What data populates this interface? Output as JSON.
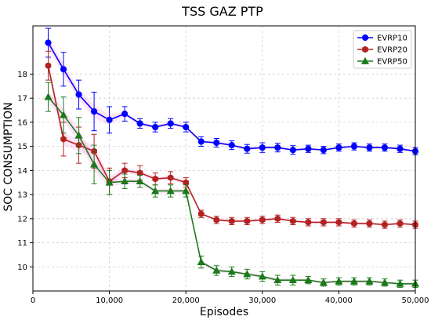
{
  "chart_data": {
    "type": "line",
    "title": "TSS GAZ PTP",
    "xlabel": "Episodes",
    "ylabel": "SOC CONSUMPTION",
    "xlim": [
      0,
      50000
    ],
    "ylim": [
      9.0,
      20.0
    ],
    "xticks": [
      0,
      10000,
      20000,
      30000,
      40000,
      50000
    ],
    "xtick_labels": [
      "0",
      "10,000",
      "20,000",
      "30,000",
      "40,000",
      "50,000"
    ],
    "yticks": [
      10,
      11,
      12,
      13,
      14,
      15,
      16,
      17,
      18
    ],
    "ytick_labels": [
      "10",
      "11",
      "12",
      "13",
      "14",
      "15",
      "16",
      "17",
      "18"
    ],
    "grid": true,
    "legend_position": "top-right",
    "x": [
      2000,
      4000,
      6000,
      8000,
      10000,
      12000,
      14000,
      16000,
      18000,
      20000,
      22000,
      24000,
      26000,
      28000,
      30000,
      32000,
      34000,
      36000,
      38000,
      40000,
      42000,
      44000,
      46000,
      48000,
      50000
    ],
    "series": [
      {
        "name": "EVRP10",
        "color": "#0000ff",
        "marker": "circle",
        "values": [
          19.3,
          18.2,
          17.15,
          16.45,
          16.1,
          16.35,
          15.95,
          15.8,
          15.95,
          15.8,
          15.2,
          15.15,
          15.05,
          14.9,
          14.95,
          14.95,
          14.85,
          14.9,
          14.85,
          14.95,
          15.0,
          14.95,
          14.95,
          14.9,
          14.8
        ],
        "errors": [
          0.6,
          0.7,
          0.6,
          0.8,
          0.55,
          0.3,
          0.2,
          0.2,
          0.2,
          0.2,
          0.2,
          0.18,
          0.18,
          0.18,
          0.2,
          0.18,
          0.18,
          0.15,
          0.15,
          0.15,
          0.15,
          0.15,
          0.15,
          0.15,
          0.15
        ]
      },
      {
        "name": "EVRP20",
        "color": "#b22222",
        "marker": "hexagon",
        "values": [
          18.35,
          15.3,
          15.05,
          14.8,
          13.55,
          14.0,
          13.9,
          13.65,
          13.7,
          13.5,
          12.2,
          11.95,
          11.9,
          11.9,
          11.95,
          12.0,
          11.9,
          11.85,
          11.85,
          11.85,
          11.8,
          11.8,
          11.75,
          11.8,
          11.75
        ],
        "errors": [
          0.6,
          0.7,
          0.75,
          0.7,
          0.55,
          0.3,
          0.3,
          0.25,
          0.25,
          0.2,
          0.15,
          0.15,
          0.15,
          0.15,
          0.15,
          0.15,
          0.15,
          0.15,
          0.15,
          0.15,
          0.15,
          0.15,
          0.15,
          0.15,
          0.15
        ]
      },
      {
        "name": "EVRP50",
        "color": "#1a7a1a",
        "marker": "triangle",
        "values": [
          17.05,
          16.3,
          15.45,
          14.25,
          13.5,
          13.55,
          13.55,
          13.15,
          13.15,
          13.15,
          10.2,
          9.85,
          9.8,
          9.7,
          9.6,
          9.45,
          9.45,
          9.45,
          9.35,
          9.4,
          9.4,
          9.4,
          9.35,
          9.3,
          9.3
        ],
        "errors": [
          0.6,
          0.75,
          0.75,
          0.8,
          0.5,
          0.3,
          0.25,
          0.25,
          0.25,
          0.25,
          0.25,
          0.2,
          0.2,
          0.2,
          0.2,
          0.2,
          0.2,
          0.15,
          0.15,
          0.15,
          0.15,
          0.15,
          0.15,
          0.15,
          0.15
        ]
      }
    ]
  }
}
